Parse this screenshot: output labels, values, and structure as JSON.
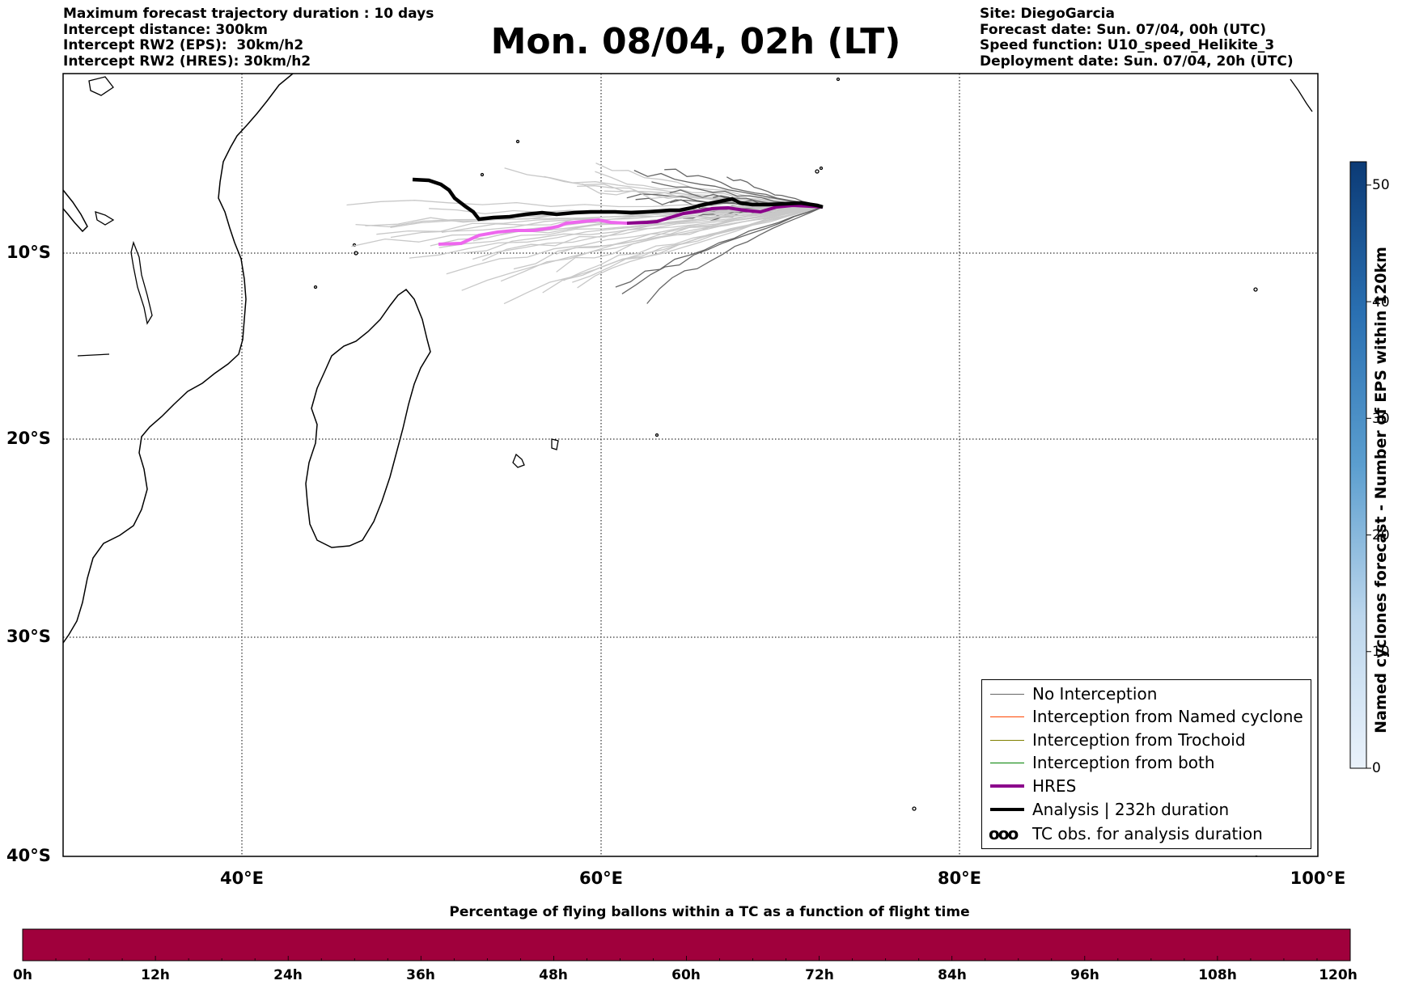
{
  "header_left": [
    "Maximum forecast trajectory duration : 10 days",
    "Intercept distance: 300km",
    "Intercept RW2 (EPS):  30km/h2",
    "Intercept RW2 (HRES): 30km/h2"
  ],
  "title": "Mon. 08/04, 02h (LT)",
  "header_right": [
    "Site: DiegoGarcia",
    "Forecast date: Sun. 07/04, 00h (UTC)",
    "Speed function: U10_speed_Helikite_3",
    "Deployment date: Sun. 07/04, 20h (UTC)"
  ],
  "map": {
    "lat_labels": [
      "10°S",
      "20°S",
      "30°S",
      "40°S"
    ],
    "lon_labels": [
      "40°E",
      "60°E",
      "80°E",
      "100°E"
    ],
    "colors": {
      "eps_member": "#666666",
      "eps_member_light": "#c8c8c8",
      "hres": "#8b008b",
      "hres_light": "#ee66ee",
      "analysis": "#000000"
    }
  },
  "legend": {
    "items": [
      {
        "label": "No Interception",
        "color": "#666666",
        "width": 1.2
      },
      {
        "label": "Interception from Named cyclone",
        "color": "#ff4500",
        "width": 1.2
      },
      {
        "label": "Interception from Trochoid",
        "color": "#808000",
        "width": 1.2
      },
      {
        "label": "Interception from both",
        "color": "#008000",
        "width": 1.2
      },
      {
        "label": "HRES",
        "color": "#8b008b",
        "width": 4
      },
      {
        "label": "Analysis | 232h duration",
        "color": "#000000",
        "width": 4
      }
    ],
    "tc_symbol": "ooo",
    "tc_label": "TC obs. for analysis duration"
  },
  "right_colorbar": {
    "label": "Named cyclones forecast - Number of EPS within 120km",
    "ticks": [
      "0",
      "10",
      "20",
      "30",
      "40",
      "50"
    ],
    "range": [
      0,
      52
    ]
  },
  "bottom_colorbar": {
    "title": "Percentage of flying ballons within a TC as a function of flight time",
    "ticks": [
      "0h",
      "12h",
      "24h",
      "36h",
      "48h",
      "60h",
      "72h",
      "84h",
      "96h",
      "108h",
      "120h"
    ],
    "color": "#a0003c"
  }
}
